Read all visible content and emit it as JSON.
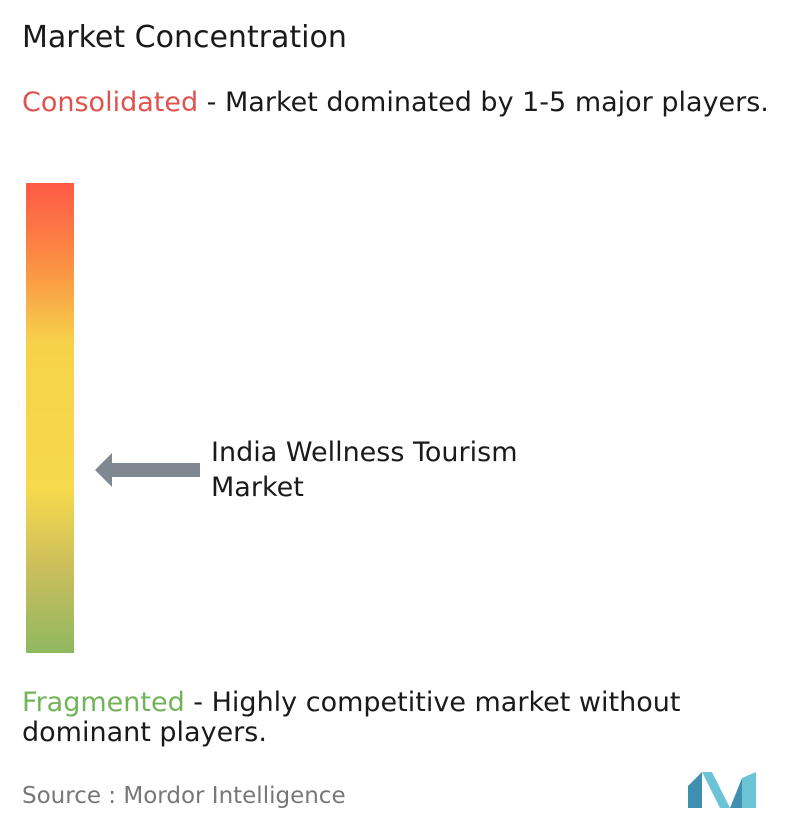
{
  "title": "Market Concentration",
  "consolidated": {
    "term": "Consolidated",
    "description": " - Market dominated by 1-5 major players."
  },
  "fragmented": {
    "term": "Fragmented",
    "description": " - Highly competitive market without dominant players."
  },
  "marker": {
    "label": "India Wellness Tourism Market",
    "position_from_top": 0.61
  },
  "source": {
    "prefix": "Source :",
    "name": "Mordor Intelligence"
  },
  "colors": {
    "consolidated": "#e0524e",
    "fragmented": "#72b35a",
    "arrow": "#7f8790",
    "logo_dark": "#3f8fb0",
    "logo_light": "#6cc3d6"
  },
  "icons": {
    "marker": "left-arrow-icon",
    "logo": "mordor-intelligence-logo"
  },
  "chart_data": {
    "type": "concentration-scale",
    "title": "Market Concentration",
    "scale_top_label": "Consolidated",
    "scale_bottom_label": "Fragmented",
    "markers": [
      {
        "label": "India Wellness Tourism Market",
        "position_from_top": 0.61
      }
    ]
  }
}
